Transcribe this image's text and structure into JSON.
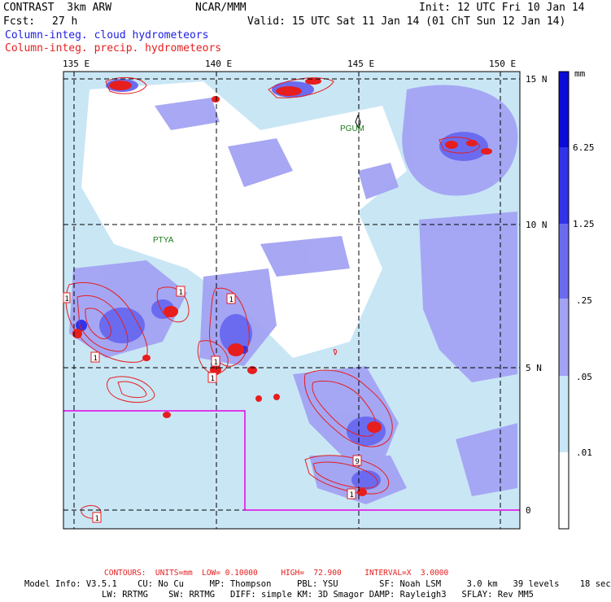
{
  "header": {
    "title": "CONTRAST  3km ARW",
    "center": "NCAR/MMM",
    "init": "Init: 12 UTC Fri 10 Jan 14",
    "forecast_label": "Fcst:",
    "forecast_value": "27 h",
    "valid": "Valid: 15 UTC Sat 11 Jan 14 (01 ChT Sun 12 Jan 14)"
  },
  "legend": {
    "cloud": "Column-integ. cloud hydrometeors",
    "precip": "Column-integ. precip. hydrometeors"
  },
  "axes": {
    "lon_ticks": [
      "135 E",
      "140 E",
      "145 E",
      "150 E"
    ],
    "lat_ticks": [
      "15 N",
      "10 N",
      "5 N",
      "0"
    ]
  },
  "stations": [
    "PGUM",
    "PTYA"
  ],
  "contour_labels": [
    "1",
    "1",
    "1",
    "1",
    "1",
    "1",
    "9",
    "1",
    "1"
  ],
  "colorbar": {
    "unit": "mm",
    "labels": [
      "6.25",
      "1.25",
      ".25",
      ".05",
      ".01"
    ],
    "colors": [
      "#0c0cd8",
      "#3232ea",
      "#6b6bf0",
      "#a3a3f3",
      "#c9e6f5",
      "#e3f6fb",
      "#ffffff"
    ]
  },
  "footer": {
    "contours": "CONTOURS:  UNITS=mm  LOW= 0.10000     HIGH=  72.900     INTERVAL=X  3.0000",
    "model_line1": "Model Info: V3.5.1    CU: No Cu     MP: Thompson     PBL: YSU        SF: Noah LSM     3.0 km   39 levels    18 sec",
    "model_line2": "LW: RRTMG    SW: RRTMG   DIFF: simple KM: 3D Smagor DAMP: Rayleigh3   SFLAY: Rev MM5"
  },
  "colors": {
    "precip_contour": "#e61e1e",
    "domain_box": "#e600e6",
    "station_text": "#1a7a1a"
  }
}
